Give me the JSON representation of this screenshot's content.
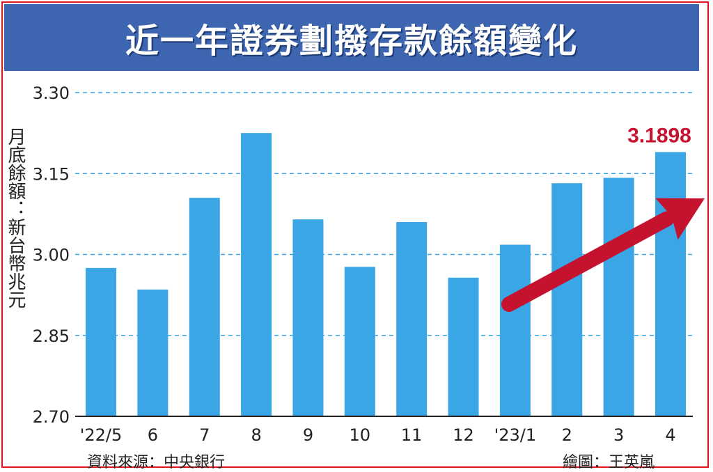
{
  "chart_data": {
    "type": "bar",
    "title": "近一年證券劃撥存款餘額變化",
    "ylabel": "月底餘額：新台幣兆元",
    "categories": [
      "'22/5",
      "6",
      "7",
      "8",
      "9",
      "10",
      "11",
      "12",
      "'23/1",
      "2",
      "3",
      "4"
    ],
    "values": [
      2.975,
      2.935,
      3.105,
      3.225,
      3.065,
      2.977,
      3.06,
      2.957,
      3.018,
      3.132,
      3.142,
      3.1898
    ],
    "ylim": [
      2.7,
      3.3
    ],
    "yticks": [
      "2.70",
      "2.85",
      "3.00",
      "3.15",
      "3.30"
    ],
    "grid": true,
    "annotation": "3.1898",
    "colors": {
      "bar": "#3aa6e6",
      "accent": "#c4122f",
      "title_bg": "#3e66b0",
      "grid": "#3aa6e6"
    }
  },
  "footer": {
    "source": "資料來源：中央銀行",
    "credit": "繪圖：王英嵐"
  }
}
